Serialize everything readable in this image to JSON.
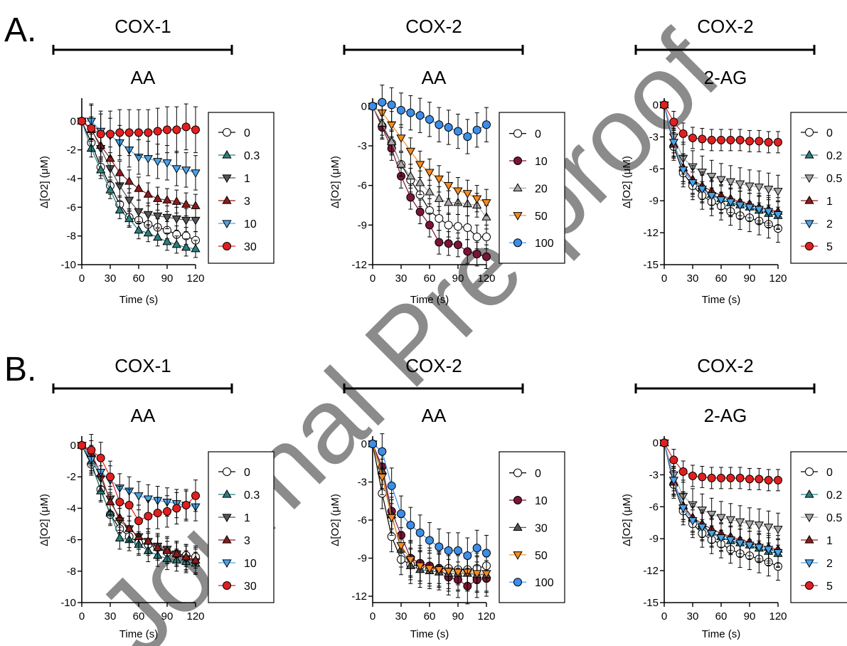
{
  "watermark": "Journal Pre-proof",
  "row_labels": [
    "A.",
    "B."
  ],
  "colors": {
    "white": "#ffffff",
    "teal": "#2a7f7f",
    "gray_dark": "#555555",
    "gray_light": "#a8a8a8",
    "dark_red": "#8e1b1b",
    "light_blue": "#4ba3e8",
    "red": "#e02020",
    "maroon": "#7a1535",
    "orange": "#f58a1e",
    "blue": "#3d8ee8"
  },
  "chart_data": [
    {
      "type": "line",
      "row": "A",
      "col": 0,
      "enzyme": "COX-1",
      "substrate": "AA",
      "xlabel": "Time (s)",
      "ylabel": "Δ[O2] (μM)",
      "xlim": [
        0,
        120
      ],
      "ylim": [
        -10,
        1.5
      ],
      "xticks": [
        0,
        30,
        60,
        90,
        120
      ],
      "yticks": [
        0,
        -2,
        -4,
        -6,
        -8,
        -10
      ],
      "x": [
        0,
        10,
        20,
        30,
        40,
        50,
        60,
        70,
        80,
        90,
        100,
        110,
        120
      ],
      "legend": [
        "0",
        "0.3",
        "1",
        "3",
        "10",
        "30"
      ],
      "series": [
        {
          "name": "0",
          "marker": "circle",
          "color": "#ffffff",
          "err": 0.6,
          "values": [
            0,
            -1.5,
            -3.2,
            -4.5,
            -5.8,
            -6.7,
            -6.9,
            -7.2,
            -7.4,
            -7.6,
            -7.9,
            -8.0,
            -8.3
          ]
        },
        {
          "name": "0.3",
          "marker": "triangle-up",
          "color": "#2a7f7f",
          "err": 0.6,
          "values": [
            0,
            -1.9,
            -3.4,
            -4.8,
            -6.2,
            -6.8,
            -7.6,
            -7.8,
            -8.1,
            -8.4,
            -8.6,
            -8.8,
            -8.9
          ]
        },
        {
          "name": "1",
          "marker": "triangle-down",
          "color": "#555555",
          "err": 0.8,
          "values": [
            0,
            -0.5,
            -1.9,
            -3.3,
            -4.5,
            -5.5,
            -6.3,
            -6.5,
            -6.6,
            -6.7,
            -6.8,
            -6.9,
            -6.9
          ]
        },
        {
          "name": "3",
          "marker": "triangle-up",
          "color": "#8e1b1b",
          "err": 0.8,
          "values": [
            0,
            -0.6,
            -1.7,
            -2.6,
            -3.6,
            -4.2,
            -4.7,
            -5.1,
            -5.4,
            -5.5,
            -5.6,
            -5.8,
            -5.9
          ]
        },
        {
          "name": "10",
          "marker": "triangle-down",
          "color": "#4ba3e8",
          "err": 1.2,
          "values": [
            0,
            0,
            -0.7,
            -1.0,
            -1.5,
            -2.0,
            -2.5,
            -2.6,
            -2.8,
            -2.9,
            -3.3,
            -3.4,
            -3.6
          ]
        },
        {
          "name": "30",
          "marker": "circle",
          "color": "#e02020",
          "err": 1.6,
          "values": [
            0,
            -0.5,
            -0.9,
            -0.9,
            -0.8,
            -0.8,
            -0.8,
            -0.8,
            -0.7,
            -0.6,
            -0.6,
            -0.4,
            -0.6
          ]
        }
      ]
    },
    {
      "type": "line",
      "row": "A",
      "col": 1,
      "enzyme": "COX-2",
      "substrate": "AA",
      "xlabel": "Time (s)",
      "ylabel": "Δ[O2] (μM)",
      "xlim": [
        0,
        120
      ],
      "ylim": [
        -12,
        0.5
      ],
      "xticks": [
        0,
        30,
        60,
        90,
        120
      ],
      "yticks": [
        0,
        -3,
        -6,
        -9,
        -12
      ],
      "x": [
        0,
        10,
        20,
        30,
        40,
        50,
        60,
        70,
        80,
        90,
        100,
        110,
        120
      ],
      "legend": [
        "0",
        "10",
        "20",
        "50",
        "100"
      ],
      "series": [
        {
          "name": "0",
          "marker": "circle",
          "color": "#ffffff",
          "err": 0.9,
          "values": [
            0,
            -1.5,
            -2.8,
            -4.4,
            -5.6,
            -6.7,
            -7.9,
            -8.5,
            -9.0,
            -9.1,
            -9.2,
            -9.9,
            -9.9
          ]
        },
        {
          "name": "10",
          "marker": "circle",
          "color": "#7a1535",
          "err": 0.9,
          "values": [
            0,
            -1.6,
            -3.2,
            -5.3,
            -6.9,
            -8.0,
            -9.0,
            -10.3,
            -10.4,
            -10.5,
            -11.0,
            -11.2,
            -11.4
          ]
        },
        {
          "name": "20",
          "marker": "triangle-up",
          "color": "#a8a8a8",
          "err": 0.9,
          "values": [
            0,
            -1.3,
            -2.7,
            -4.4,
            -5.3,
            -5.8,
            -6.5,
            -7.0,
            -7.3,
            -7.3,
            -7.4,
            -7.5,
            -8.4
          ]
        },
        {
          "name": "50",
          "marker": "triangle-down",
          "color": "#f58a1e",
          "err": 1.0,
          "values": [
            0,
            -0.5,
            -1.4,
            -2.4,
            -3.4,
            -4.4,
            -5.0,
            -5.5,
            -6.0,
            -6.4,
            -6.6,
            -7.0,
            -7.3
          ]
        },
        {
          "name": "100",
          "marker": "circle",
          "color": "#3d8ee8",
          "err": 1.3,
          "values": [
            0,
            0.3,
            0.1,
            -0.3,
            -0.5,
            -0.7,
            -1.0,
            -1.4,
            -1.6,
            -1.9,
            -2.3,
            -1.8,
            -1.4
          ]
        }
      ]
    },
    {
      "type": "line",
      "row": "A",
      "col": 2,
      "enzyme": "COX-2",
      "substrate": "2-AG",
      "xlabel": "Time (s)",
      "ylabel": "Δ[O2] (μM)",
      "xlim": [
        0,
        120
      ],
      "ylim": [
        -15,
        0.5
      ],
      "xticks": [
        0,
        30,
        60,
        90,
        120
      ],
      "yticks": [
        0,
        -3,
        -6,
        -9,
        -12,
        -15
      ],
      "x": [
        0,
        10,
        20,
        30,
        40,
        50,
        60,
        70,
        80,
        90,
        100,
        110,
        120
      ],
      "legend": [
        "0",
        "0.2",
        "0.5",
        "1",
        "2",
        "5"
      ],
      "series": [
        {
          "name": "0",
          "marker": "circle",
          "color": "#ffffff",
          "err": 1.3,
          "values": [
            0,
            -3.9,
            -6.4,
            -7.6,
            -8.5,
            -9.1,
            -9.5,
            -10.0,
            -10.4,
            -10.6,
            -10.9,
            -11.2,
            -11.6
          ]
        },
        {
          "name": "0.2",
          "marker": "triangle-up",
          "color": "#2a7f7f",
          "err": 1.3,
          "values": [
            0,
            -3.6,
            -5.9,
            -7.1,
            -7.8,
            -8.4,
            -8.8,
            -9.2,
            -9.4,
            -9.6,
            -9.9,
            -10.2,
            -10.4
          ]
        },
        {
          "name": "0.5",
          "marker": "triangle-down",
          "color": "#a8a8a8",
          "err": 1.5,
          "values": [
            0,
            -3.0,
            -5.0,
            -5.8,
            -6.3,
            -6.7,
            -7.0,
            -7.2,
            -7.4,
            -7.6,
            -7.7,
            -7.9,
            -8.1
          ]
        },
        {
          "name": "1",
          "marker": "triangle-up",
          "color": "#8e1b1b",
          "err": 1.3,
          "values": [
            0,
            -3.7,
            -5.9,
            -7.0,
            -7.6,
            -8.1,
            -8.5,
            -8.8,
            -9.1,
            -9.3,
            -9.6,
            -9.8,
            -10.0
          ]
        },
        {
          "name": "2",
          "marker": "triangle-down",
          "color": "#4ba3e8",
          "err": 1.3,
          "values": [
            0,
            -3.5,
            -6.1,
            -7.3,
            -7.9,
            -8.5,
            -8.9,
            -9.1,
            -9.4,
            -9.6,
            -9.8,
            -10.0,
            -10.3
          ]
        },
        {
          "name": "5",
          "marker": "circle",
          "color": "#e02020",
          "err": 1.0,
          "values": [
            0,
            -1.6,
            -2.7,
            -3.1,
            -3.2,
            -3.3,
            -3.3,
            -3.3,
            -3.3,
            -3.4,
            -3.4,
            -3.5,
            -3.5
          ]
        }
      ]
    },
    {
      "type": "line",
      "row": "B",
      "col": 0,
      "enzyme": "COX-1",
      "substrate": "AA",
      "xlabel": "Time (s)",
      "ylabel": "Δ[O2] (μM)",
      "xlim": [
        0,
        120
      ],
      "ylim": [
        -10,
        0.5
      ],
      "xticks": [
        0,
        30,
        60,
        90,
        120
      ],
      "yticks": [
        0,
        -2,
        -4,
        -6,
        -8,
        -10
      ],
      "x": [
        0,
        10,
        20,
        30,
        40,
        50,
        60,
        70,
        80,
        90,
        100,
        110,
        120
      ],
      "legend": [
        "0",
        "0.3",
        "1",
        "3",
        "10",
        "30"
      ],
      "series": [
        {
          "name": "0",
          "marker": "circle",
          "color": "#ffffff",
          "err": 0.7,
          "values": [
            0,
            -1.2,
            -2.8,
            -4.4,
            -5.3,
            -5.8,
            -6.2,
            -6.3,
            -6.5,
            -6.8,
            -6.9,
            -7.0,
            -7.1
          ]
        },
        {
          "name": "0.3",
          "marker": "triangle-up",
          "color": "#2a7f7f",
          "err": 0.7,
          "values": [
            0,
            -1.0,
            -2.9,
            -4.3,
            -5.9,
            -6.0,
            -6.3,
            -6.7,
            -7.0,
            -7.2,
            -7.3,
            -7.4,
            -7.5
          ]
        },
        {
          "name": "1",
          "marker": "triangle-down",
          "color": "#555555",
          "err": 0.8,
          "values": [
            0,
            -0.8,
            -2.1,
            -3.4,
            -4.8,
            -5.3,
            -5.8,
            -6.1,
            -6.4,
            -6.6,
            -6.9,
            -7.2,
            -7.4
          ]
        },
        {
          "name": "3",
          "marker": "triangle-up",
          "color": "#8e1b1b",
          "err": 0.8,
          "values": [
            0,
            -0.5,
            -1.8,
            -3.6,
            -4.6,
            -5.3,
            -5.8,
            -6.1,
            -6.5,
            -6.7,
            -6.9,
            -7.1,
            -7.3
          ]
        },
        {
          "name": "10",
          "marker": "triangle-down",
          "color": "#4ba3e8",
          "err": 0.9,
          "values": [
            0,
            -0.9,
            -1.7,
            -2.2,
            -2.7,
            -2.9,
            -3.2,
            -3.4,
            -3.5,
            -3.6,
            -3.7,
            -3.8,
            -3.9
          ]
        },
        {
          "name": "30",
          "marker": "circle",
          "color": "#e02020",
          "err": 1.0,
          "values": [
            0,
            -0.3,
            -0.8,
            -2.0,
            -3.6,
            -3.8,
            -4.8,
            -4.5,
            -4.3,
            -4.2,
            -4.0,
            -3.8,
            -3.2
          ]
        }
      ]
    },
    {
      "type": "line",
      "row": "B",
      "col": 1,
      "enzyme": "COX-2",
      "substrate": "AA",
      "xlabel": "Time (s)",
      "ylabel": "Δ[O2] (μM)",
      "xlim": [
        0,
        120
      ],
      "ylim": [
        -12.5,
        0.5
      ],
      "xticks": [
        0,
        30,
        60,
        90,
        120
      ],
      "yticks": [
        0,
        -3,
        -6,
        -9,
        -12
      ],
      "x": [
        0,
        10,
        20,
        30,
        40,
        50,
        60,
        70,
        80,
        90,
        100,
        110,
        120
      ],
      "legend": [
        "0",
        "10",
        "30",
        "50",
        "100"
      ],
      "series": [
        {
          "name": "0",
          "marker": "circle",
          "color": "#ffffff",
          "err": 1.2,
          "values": [
            0,
            -3.9,
            -7.3,
            -9.1,
            -9.5,
            -9.6,
            -9.8,
            -9.8,
            -9.8,
            -9.9,
            -9.9,
            -9.8,
            -9.6
          ]
        },
        {
          "name": "10",
          "marker": "circle",
          "color": "#7a1535",
          "err": 1.4,
          "values": [
            0,
            -1.8,
            -5.3,
            -7.2,
            -9.0,
            -9.4,
            -9.6,
            -9.8,
            -10.5,
            -10.7,
            -11.2,
            -10.7,
            -10.6
          ]
        },
        {
          "name": "30",
          "marker": "triangle-up",
          "color": "#555555",
          "err": 1.4,
          "values": [
            0,
            -2.1,
            -5.6,
            -8.3,
            -9.6,
            -9.9,
            -10.0,
            -10.1,
            -10.2,
            -10.2,
            -10.2,
            -10.3,
            -10.3
          ]
        },
        {
          "name": "50",
          "marker": "triangle-down",
          "color": "#f58a1e",
          "err": 1.4,
          "values": [
            0,
            -2.6,
            -5.8,
            -8.0,
            -9.1,
            -9.6,
            -9.8,
            -9.9,
            -10.0,
            -10.1,
            -10.1,
            -10.2,
            -10.2
          ]
        },
        {
          "name": "100",
          "marker": "circle",
          "color": "#3d8ee8",
          "err": 1.4,
          "values": [
            0,
            -0.6,
            -3.3,
            -5.5,
            -6.4,
            -7.0,
            -7.6,
            -8.1,
            -8.4,
            -8.4,
            -8.8,
            -8.2,
            -8.6
          ]
        }
      ]
    },
    {
      "type": "line",
      "row": "B",
      "col": 2,
      "enzyme": "COX-2",
      "substrate": "2-AG",
      "xlabel": "Time (s)",
      "ylabel": "Δ[O2] (μM)",
      "xlim": [
        0,
        120
      ],
      "ylim": [
        -15,
        0.5
      ],
      "xticks": [
        0,
        30,
        60,
        90,
        120
      ],
      "yticks": [
        0,
        -3,
        -6,
        -9,
        -12,
        -15
      ],
      "x": [
        0,
        10,
        20,
        30,
        40,
        50,
        60,
        70,
        80,
        90,
        100,
        110,
        120
      ],
      "legend": [
        "0",
        "0.2",
        "0.5",
        "1",
        "2",
        "5"
      ],
      "series": [
        {
          "name": "0",
          "marker": "circle",
          "color": "#ffffff",
          "err": 1.3,
          "values": [
            0,
            -3.9,
            -6.4,
            -7.6,
            -8.5,
            -9.1,
            -9.5,
            -10.0,
            -10.4,
            -10.6,
            -10.9,
            -11.2,
            -11.6
          ]
        },
        {
          "name": "0.2",
          "marker": "triangle-up",
          "color": "#2a7f7f",
          "err": 1.3,
          "values": [
            0,
            -3.6,
            -5.9,
            -7.1,
            -7.8,
            -8.4,
            -8.8,
            -9.2,
            -9.4,
            -9.6,
            -9.9,
            -10.2,
            -10.4
          ]
        },
        {
          "name": "0.5",
          "marker": "triangle-down",
          "color": "#a8a8a8",
          "err": 1.5,
          "values": [
            0,
            -3.0,
            -5.0,
            -5.8,
            -6.3,
            -6.7,
            -7.0,
            -7.2,
            -7.4,
            -7.6,
            -7.7,
            -7.9,
            -8.1
          ]
        },
        {
          "name": "1",
          "marker": "triangle-up",
          "color": "#8e1b1b",
          "err": 1.3,
          "values": [
            0,
            -3.7,
            -5.9,
            -7.0,
            -7.6,
            -8.1,
            -8.5,
            -8.8,
            -9.1,
            -9.3,
            -9.6,
            -9.8,
            -10.0
          ]
        },
        {
          "name": "2",
          "marker": "triangle-down",
          "color": "#4ba3e8",
          "err": 1.3,
          "values": [
            0,
            -3.5,
            -6.1,
            -7.3,
            -7.9,
            -8.5,
            -8.9,
            -9.1,
            -9.4,
            -9.6,
            -9.8,
            -10.0,
            -10.3
          ]
        },
        {
          "name": "5",
          "marker": "circle",
          "color": "#e02020",
          "err": 1.0,
          "values": [
            0,
            -1.6,
            -2.7,
            -3.1,
            -3.2,
            -3.3,
            -3.3,
            -3.3,
            -3.3,
            -3.4,
            -3.4,
            -3.5,
            -3.5
          ]
        }
      ]
    }
  ]
}
